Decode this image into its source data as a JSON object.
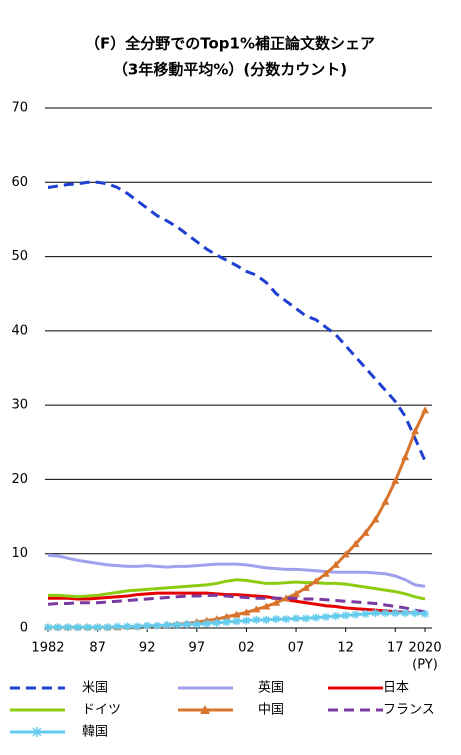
{
  "chart_data": {
    "type": "line",
    "title": "（F）全分野でのTop1%補正論文数シェア",
    "subtitle": "（3年移動平均%）(分数カウント)",
    "x_label": "(PY)",
    "x": [
      1982,
      1983,
      1984,
      1985,
      1986,
      1987,
      1988,
      1989,
      1990,
      1991,
      1992,
      1993,
      1994,
      1995,
      1996,
      1997,
      1998,
      1999,
      2000,
      2001,
      2002,
      2003,
      2004,
      2005,
      2006,
      2007,
      2008,
      2009,
      2010,
      2011,
      2012,
      2013,
      2014,
      2015,
      2016,
      2017,
      2018,
      2019,
      2020
    ],
    "xlim": [
      1981.7,
      2020.7
    ],
    "xticks": [
      {
        "value": 1982,
        "label": "1982"
      },
      {
        "value": 1987,
        "label": "87"
      },
      {
        "value": 1992,
        "label": "92"
      },
      {
        "value": 1997,
        "label": "97"
      },
      {
        "value": 2002,
        "label": "02"
      },
      {
        "value": 2007,
        "label": "07"
      },
      {
        "value": 2012,
        "label": "12"
      },
      {
        "value": 2017,
        "label": "17"
      },
      {
        "value": 2020,
        "label": "2020"
      }
    ],
    "ylim": [
      0,
      70
    ],
    "yticks": [
      0,
      10,
      20,
      30,
      40,
      50,
      60,
      70
    ],
    "grid": true,
    "legend": "bottom",
    "series": [
      {
        "name": "米国",
        "color": "#1f3fd0",
        "dash": true,
        "values": [
          59.3,
          59.5,
          59.7,
          59.8,
          60,
          60,
          59.8,
          59.3,
          58.5,
          57.5,
          56.5,
          55.5,
          54.8,
          54,
          53,
          52,
          51,
          50.2,
          49.5,
          48.8,
          48,
          47.5,
          46.5,
          45,
          44,
          43,
          42,
          41.5,
          40.5,
          39.5,
          38,
          36.5,
          35,
          33.5,
          32,
          30.5,
          28.5,
          25.5,
          22.5
        ]
      },
      {
        "name": "英国",
        "color": "#a0a0ee",
        "values": [
          9.8,
          9.7,
          9.4,
          9.1,
          8.9,
          8.7,
          8.5,
          8.4,
          8.3,
          8.3,
          8.4,
          8.3,
          8.2,
          8.3,
          8.3,
          8.4,
          8.5,
          8.6,
          8.6,
          8.6,
          8.5,
          8.3,
          8.1,
          8.0,
          7.9,
          7.9,
          7.8,
          7.7,
          7.6,
          7.5,
          7.5,
          7.5,
          7.5,
          7.4,
          7.3,
          7.0,
          6.5,
          5.8,
          5.6
        ]
      },
      {
        "name": "日本",
        "color": "#e60000",
        "values": [
          4.0,
          4.0,
          4.0,
          3.9,
          3.9,
          4.0,
          4.1,
          4.2,
          4.3,
          4.5,
          4.6,
          4.7,
          4.7,
          4.7,
          4.7,
          4.7,
          4.7,
          4.6,
          4.5,
          4.5,
          4.4,
          4.3,
          4.2,
          4.0,
          3.8,
          3.6,
          3.4,
          3.2,
          3.0,
          2.9,
          2.7,
          2.6,
          2.5,
          2.4,
          2.3,
          2.2,
          2.1,
          2.0,
          1.9
        ]
      },
      {
        "name": "ドイツ",
        "color": "#8ccc10",
        "values": [
          4.4,
          4.4,
          4.3,
          4.2,
          4.3,
          4.4,
          4.6,
          4.8,
          5.0,
          5.1,
          5.2,
          5.3,
          5.4,
          5.5,
          5.6,
          5.7,
          5.8,
          6.0,
          6.3,
          6.5,
          6.4,
          6.2,
          6.0,
          6.0,
          6.1,
          6.2,
          6.1,
          6.1,
          6.0,
          6.0,
          5.9,
          5.7,
          5.5,
          5.3,
          5.1,
          4.9,
          4.6,
          4.2,
          3.9
        ]
      },
      {
        "name": "中国",
        "color": "#d9742c",
        "marker": "triangle",
        "values": [
          0.1,
          0.1,
          0.1,
          0.1,
          0.1,
          0.1,
          0.1,
          0.1,
          0.2,
          0.2,
          0.3,
          0.3,
          0.4,
          0.5,
          0.6,
          0.8,
          1.0,
          1.2,
          1.5,
          1.8,
          2.1,
          2.5,
          2.9,
          3.4,
          4.0,
          4.6,
          5.4,
          6.3,
          7.3,
          8.5,
          9.9,
          11.3,
          12.8,
          14.6,
          17,
          19.8,
          23,
          26.5,
          29.3
        ]
      },
      {
        "name": "フランス",
        "color": "#7a3aa0",
        "dash": true,
        "values": [
          3.2,
          3.3,
          3.3,
          3.4,
          3.4,
          3.4,
          3.5,
          3.6,
          3.7,
          3.8,
          3.9,
          4.0,
          4.1,
          4.2,
          4.3,
          4.3,
          4.4,
          4.4,
          4.3,
          4.2,
          4.1,
          4.0,
          4.0,
          4.0,
          4.0,
          4.0,
          3.9,
          3.9,
          3.8,
          3.7,
          3.6,
          3.5,
          3.4,
          3.3,
          3.1,
          2.9,
          2.7,
          2.4,
          2.2
        ]
      },
      {
        "name": "韓国",
        "color": "#66ccee",
        "marker": "star",
        "values": [
          0.1,
          0.1,
          0.1,
          0.1,
          0.1,
          0.1,
          0.1,
          0.2,
          0.2,
          0.2,
          0.3,
          0.3,
          0.4,
          0.4,
          0.5,
          0.5,
          0.6,
          0.7,
          0.8,
          0.9,
          1.0,
          1.1,
          1.1,
          1.2,
          1.2,
          1.3,
          1.3,
          1.4,
          1.5,
          1.6,
          1.7,
          1.8,
          1.9,
          2.0,
          2.0,
          2.0,
          2.0,
          2.0,
          1.9
        ]
      }
    ]
  }
}
